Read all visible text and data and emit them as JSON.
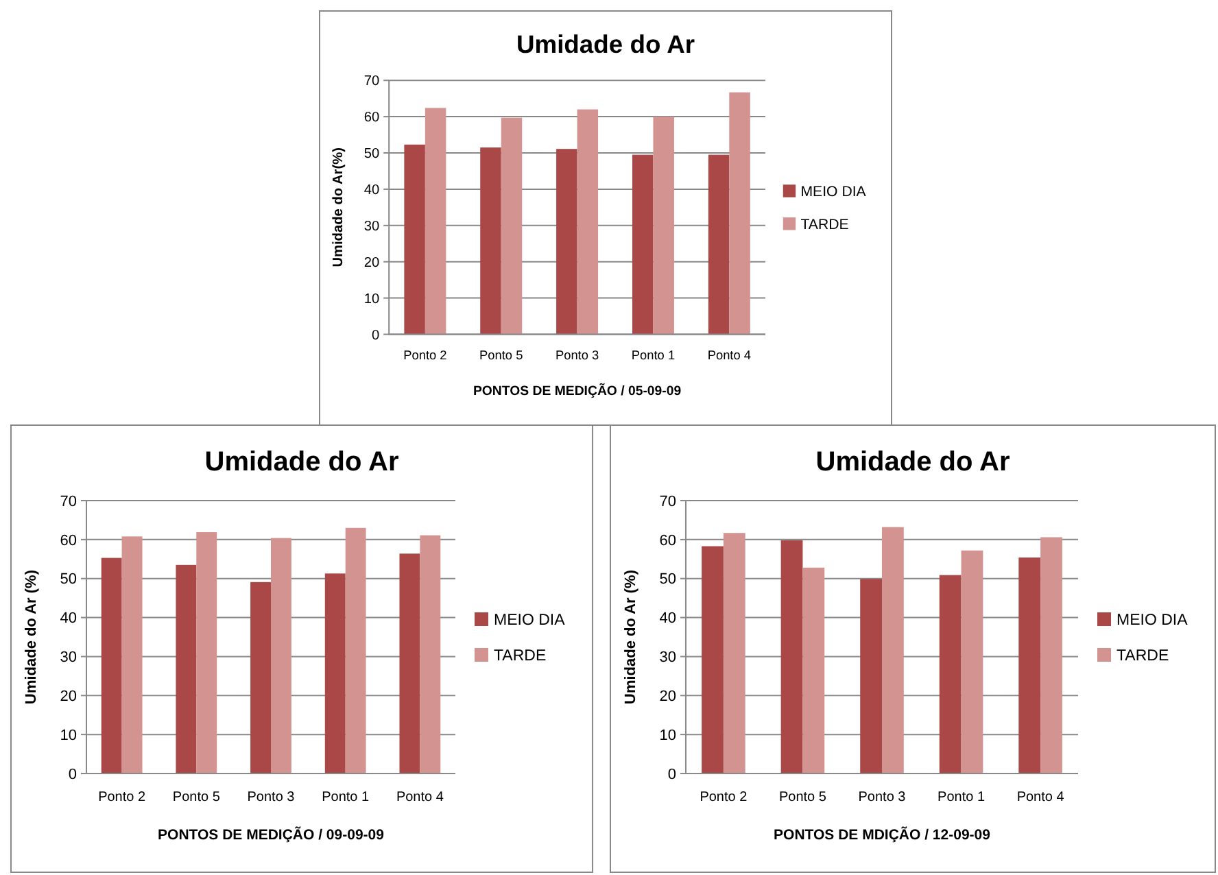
{
  "chart_data": [
    {
      "type": "bar",
      "title": "Umidade do Ar",
      "xlabel": "PONTOS DE MEDIÇÃO / 05-09-09",
      "ylabel": "Umidade do Ar(%)",
      "categories": [
        "Ponto 2",
        "Ponto 5",
        "Ponto 3",
        "Ponto 1",
        "Ponto 4"
      ],
      "series": [
        {
          "name": "MEIO DIA",
          "color": "#a94846",
          "values": [
            52.3,
            51.5,
            51.1,
            49.5,
            49.5
          ]
        },
        {
          "name": "TARDE",
          "color": "#d39391",
          "values": [
            62.4,
            59.7,
            62,
            60,
            66.7
          ]
        }
      ],
      "ylim": [
        0,
        70
      ],
      "yticks": [
        0,
        10,
        20,
        30,
        40,
        50,
        60,
        70
      ],
      "grid": "y",
      "legend": "right"
    },
    {
      "type": "bar",
      "title": "Umidade do Ar",
      "xlabel": "PONTOS DE MEDIÇÃO / 09-09-09",
      "ylabel": "Umidade do Ar (%)",
      "categories": [
        "Ponto 2",
        "Ponto 5",
        "Ponto 3",
        "Ponto 1",
        "Ponto 4"
      ],
      "series": [
        {
          "name": "MEIO DIA",
          "color": "#a94846",
          "values": [
            55.3,
            53.5,
            49.1,
            51.3,
            56.4
          ]
        },
        {
          "name": "TARDE",
          "color": "#d39391",
          "values": [
            60.8,
            61.9,
            60.4,
            63,
            61.1
          ]
        }
      ],
      "ylim": [
        0,
        70
      ],
      "yticks": [
        0,
        10,
        20,
        30,
        40,
        50,
        60,
        70
      ],
      "grid": "y",
      "legend": "right"
    },
    {
      "type": "bar",
      "title": "Umidade do Ar",
      "xlabel": "PONTOS DE MDIÇÃO / 12-09-09",
      "ylabel": "Umidade do Ar (%)",
      "categories": [
        "Ponto 2",
        "Ponto 5",
        "Ponto 3",
        "Ponto 1",
        "Ponto 4"
      ],
      "series": [
        {
          "name": "MEIO DIA",
          "color": "#a94846",
          "values": [
            58.3,
            59.8,
            49.9,
            50.9,
            55.4
          ]
        },
        {
          "name": "TARDE",
          "color": "#d39391",
          "values": [
            61.7,
            52.8,
            63.2,
            57.2,
            60.6
          ]
        }
      ],
      "ylim": [
        0,
        70
      ],
      "yticks": [
        0,
        10,
        20,
        30,
        40,
        50,
        60,
        70
      ],
      "grid": "y",
      "legend": "right"
    }
  ]
}
